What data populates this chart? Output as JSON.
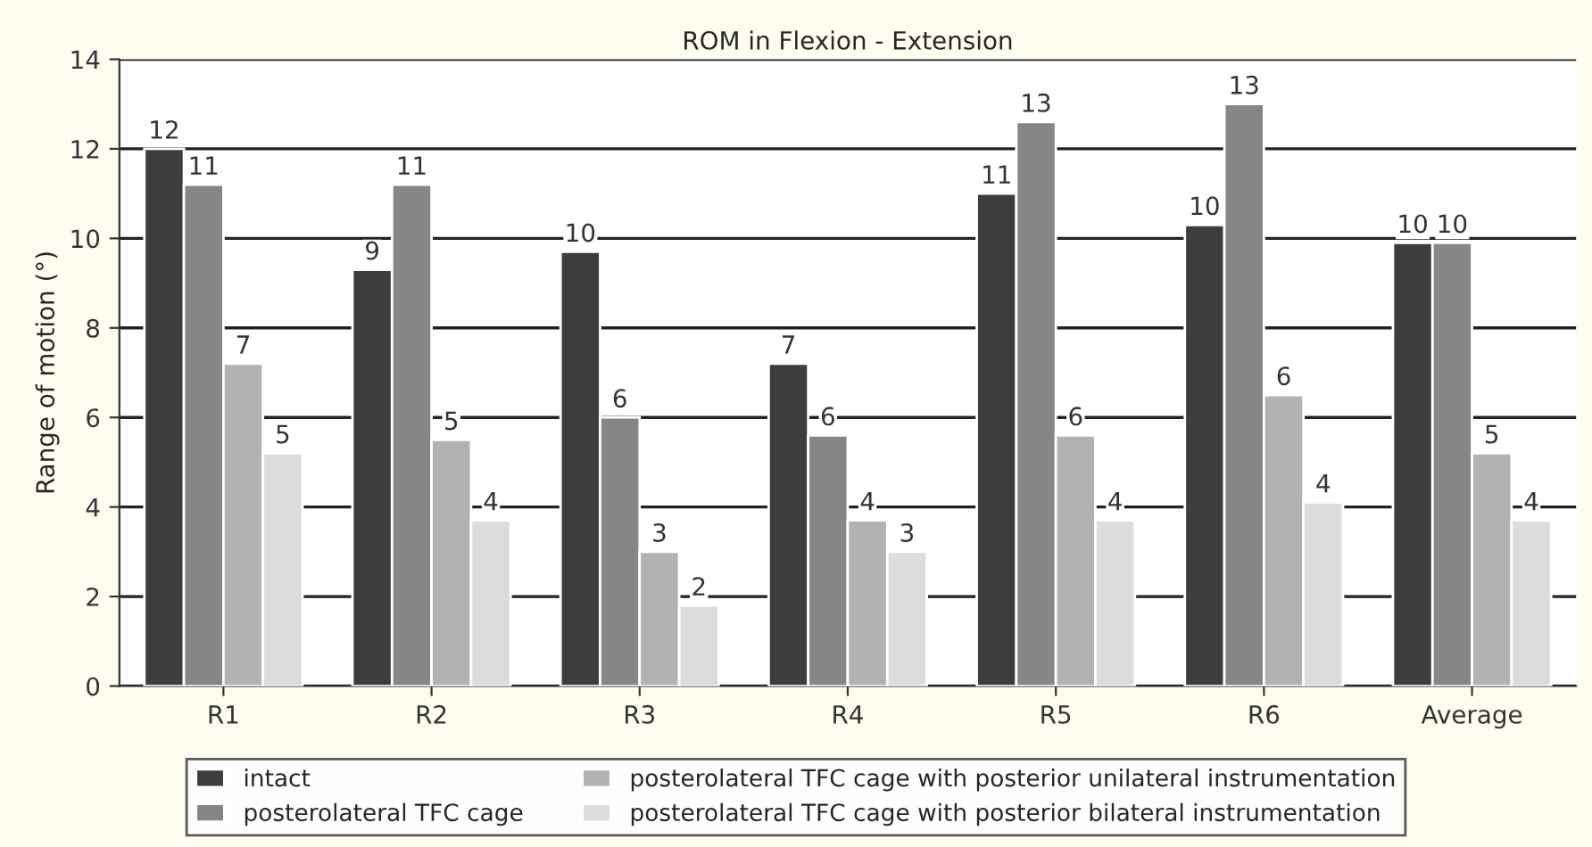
{
  "chart_data": {
    "type": "bar",
    "title": "ROM in Flexion - Extension",
    "ylabel": "Range of motion (°)",
    "categories": [
      "R1",
      "R2",
      "R3",
      "R4",
      "R5",
      "R6",
      "Average"
    ],
    "series": [
      {
        "name": "intact",
        "color": "#3d3d3d",
        "values": [
          12.0,
          9.3,
          9.7,
          7.2,
          11.0,
          10.3,
          9.9
        ],
        "value_labels": [
          "12",
          "9",
          "10",
          "7",
          "11",
          "10",
          "10"
        ]
      },
      {
        "name": "posterolateral TFC cage",
        "color": "#868686",
        "values": [
          11.2,
          11.2,
          6.0,
          5.6,
          12.6,
          13.0,
          9.9
        ],
        "value_labels": [
          "11",
          "11",
          "6",
          "6",
          "13",
          "13",
          "10"
        ]
      },
      {
        "name": "posterolateral TFC cage with posterior unilateral instrumentation",
        "color": "#b2b2b2",
        "values": [
          7.2,
          5.5,
          3.0,
          3.7,
          5.6,
          6.5,
          5.2
        ],
        "value_labels": [
          "7",
          "5",
          "3",
          "4",
          "6",
          "6",
          "5"
        ]
      },
      {
        "name": "posterolateral TFC cage with posterior bilateral instrumentation",
        "color": "#dcdcdc",
        "values": [
          5.2,
          3.7,
          1.8,
          3.0,
          3.7,
          4.1,
          3.7
        ],
        "value_labels": [
          "5",
          "4",
          "2",
          "3",
          "4",
          "4",
          "4"
        ]
      }
    ],
    "ylim": [
      0,
      14
    ],
    "yticks": [
      0,
      2,
      4,
      6,
      8,
      10,
      12,
      14
    ],
    "grid": "y",
    "legend": "bottom"
  }
}
